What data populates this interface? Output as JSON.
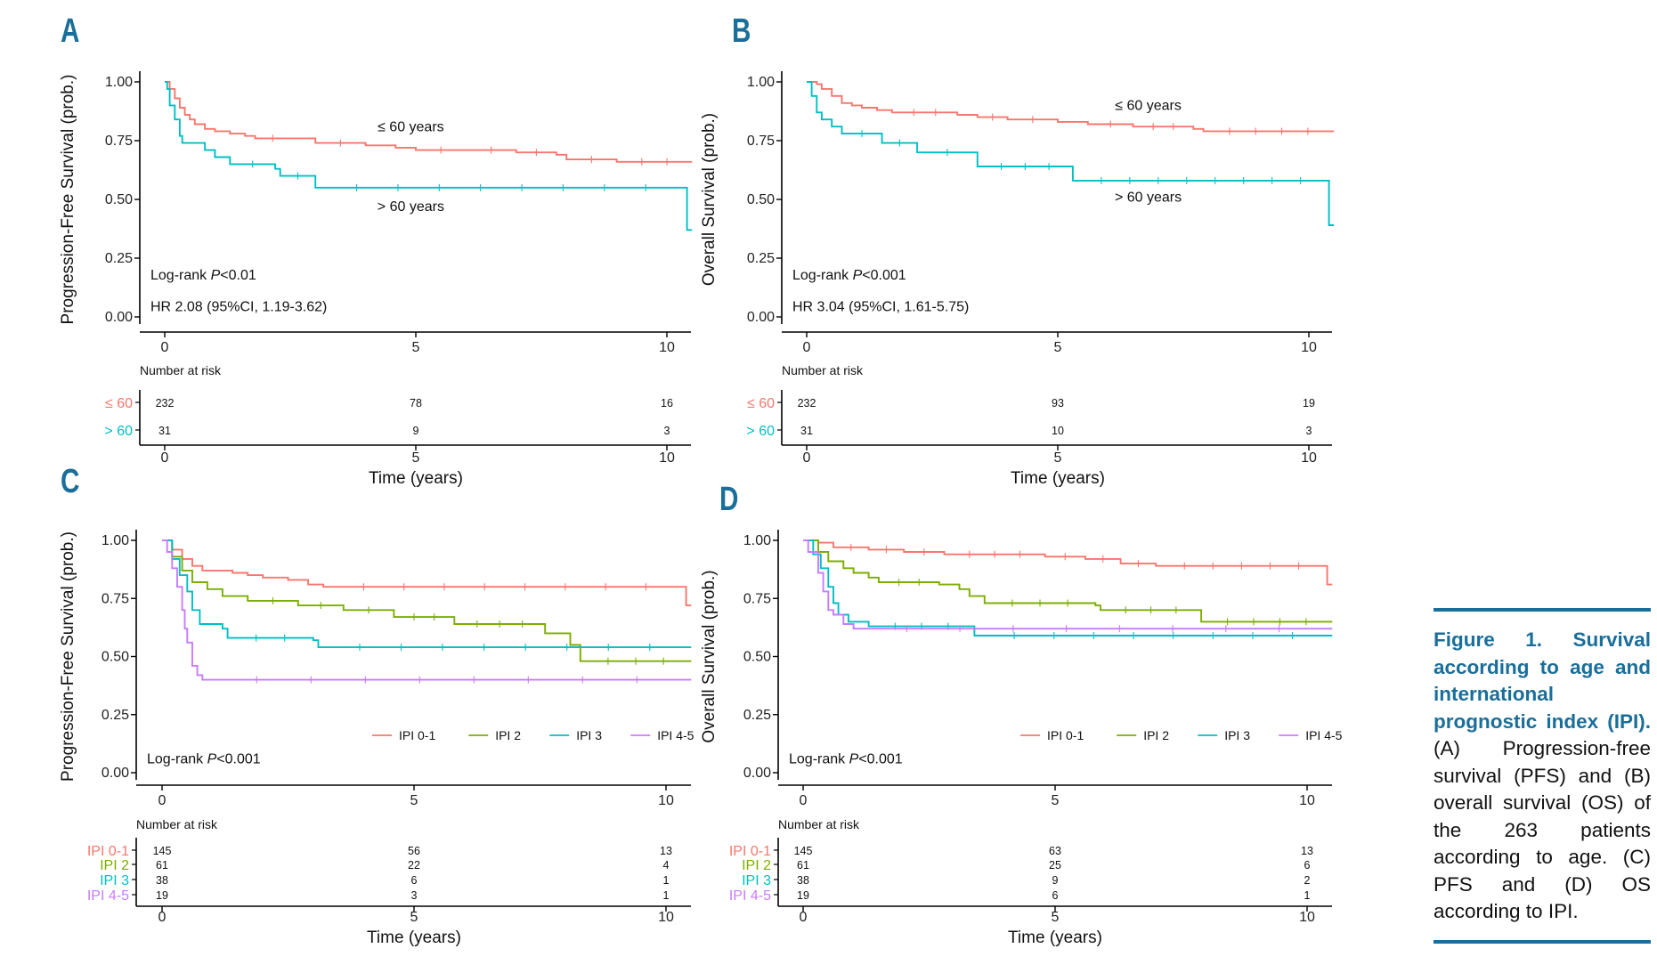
{
  "colors": {
    "red": "#f8766d",
    "teal": "#00bfc4",
    "green": "#7cae00",
    "cyan": "#00b5d6",
    "purple": "#c77cff",
    "accent": "#1a6e9a"
  },
  "caption": {
    "heading": "Figure 1. Survival according to age and international prognostic index (IPI).",
    "body": " (A) Progression-free survival (PFS) and (B) overall survival (OS) of the 263 patients according to age. (C) PFS and (D) OS according to IPI."
  },
  "chart_data": [
    {
      "panel": "A",
      "type": "line",
      "subtype": "kaplan-meier",
      "ylabel": "Progression-Free Survival (prob.)",
      "xlabel": "Time (years)",
      "xlim": [
        0,
        10.5
      ],
      "ylim": [
        0,
        1
      ],
      "xticks": [
        "0",
        "5",
        "10"
      ],
      "yticks": [
        "0.00",
        "0.25",
        "0.50",
        "0.75",
        "1.00"
      ],
      "annotations": {
        "logrank_prefix": "Log-rank ",
        "logrank_p": "P",
        "logrank_value": "<0.01",
        "hr": "HR 2.08 (95%CI, 1.19-3.62)"
      },
      "series": [
        {
          "name": "≤ 60 years",
          "risk_label": "≤ 60",
          "color": "#f8766d",
          "points": [
            [
              0,
              1
            ],
            [
              0.1,
              0.97
            ],
            [
              0.2,
              0.93
            ],
            [
              0.3,
              0.89
            ],
            [
              0.4,
              0.86
            ],
            [
              0.5,
              0.84
            ],
            [
              0.6,
              0.82
            ],
            [
              0.8,
              0.8
            ],
            [
              1.0,
              0.79
            ],
            [
              1.3,
              0.78
            ],
            [
              1.6,
              0.77
            ],
            [
              1.8,
              0.76
            ],
            [
              2.5,
              0.76
            ],
            [
              3.0,
              0.74
            ],
            [
              4.0,
              0.73
            ],
            [
              4.6,
              0.72
            ],
            [
              5.0,
              0.71
            ],
            [
              6.0,
              0.71
            ],
            [
              7.0,
              0.7
            ],
            [
              7.8,
              0.69
            ],
            [
              8.0,
              0.67
            ],
            [
              9.0,
              0.66
            ],
            [
              10.5,
              0.66
            ]
          ],
          "risk": [
            "232",
            "78",
            "16"
          ],
          "end_label": "≤ 60 years",
          "end_label_xy": [
            4.9,
            0.79
          ]
        },
        {
          "name": "> 60 years",
          "risk_label": "> 60",
          "color": "#00bfc4",
          "points": [
            [
              0,
              1
            ],
            [
              0.05,
              0.97
            ],
            [
              0.1,
              0.9
            ],
            [
              0.2,
              0.84
            ],
            [
              0.3,
              0.77
            ],
            [
              0.35,
              0.74
            ],
            [
              0.7,
              0.74
            ],
            [
              0.8,
              0.71
            ],
            [
              1.0,
              0.68
            ],
            [
              1.3,
              0.65
            ],
            [
              2.2,
              0.63
            ],
            [
              2.3,
              0.6
            ],
            [
              3.0,
              0.55
            ],
            [
              10.4,
              0.55
            ],
            [
              10.4,
              0.37
            ],
            [
              10.5,
              0.37
            ]
          ],
          "risk": [
            "31",
            "9",
            "3"
          ],
          "end_label": "> 60 years",
          "end_label_xy": [
            4.9,
            0.45
          ]
        }
      ],
      "risk_times": [
        0,
        5,
        10
      ],
      "risk_title": "Number at risk"
    },
    {
      "panel": "B",
      "type": "line",
      "subtype": "kaplan-meier",
      "ylabel": "Overall Survival (prob.)",
      "xlabel": "Time (years)",
      "xlim": [
        0,
        10.5
      ],
      "ylim": [
        0,
        1
      ],
      "xticks": [
        "0",
        "5",
        "10"
      ],
      "yticks": [
        "0.00",
        "0.25",
        "0.50",
        "0.75",
        "1.00"
      ],
      "annotations": {
        "logrank_prefix": "Log-rank ",
        "logrank_p": "P",
        "logrank_value": "<0.001",
        "hr": "HR 3.04 (95%CI, 1.61-5.75)"
      },
      "series": [
        {
          "name": "≤ 60 years",
          "risk_label": "≤ 60",
          "color": "#f8766d",
          "points": [
            [
              0,
              1
            ],
            [
              0.2,
              0.99
            ],
            [
              0.3,
              0.97
            ],
            [
              0.5,
              0.94
            ],
            [
              0.7,
              0.91
            ],
            [
              0.9,
              0.9
            ],
            [
              1.1,
              0.89
            ],
            [
              1.4,
              0.88
            ],
            [
              1.7,
              0.87
            ],
            [
              3.0,
              0.86
            ],
            [
              3.4,
              0.85
            ],
            [
              4.0,
              0.84
            ],
            [
              5.0,
              0.83
            ],
            [
              5.6,
              0.82
            ],
            [
              6.5,
              0.81
            ],
            [
              7.7,
              0.8
            ],
            [
              7.9,
              0.79
            ],
            [
              10.5,
              0.79
            ]
          ],
          "risk": [
            "232",
            "93",
            "19"
          ],
          "end_label": "≤ 60 years",
          "end_label_xy": [
            6.8,
            0.88
          ]
        },
        {
          "name": "> 60 years",
          "risk_label": "> 60",
          "color": "#00bfc4",
          "points": [
            [
              0,
              1
            ],
            [
              0.1,
              0.94
            ],
            [
              0.2,
              0.87
            ],
            [
              0.3,
              0.84
            ],
            [
              0.5,
              0.81
            ],
            [
              0.7,
              0.78
            ],
            [
              1.5,
              0.78
            ],
            [
              1.5,
              0.74
            ],
            [
              2.2,
              0.74
            ],
            [
              2.2,
              0.7
            ],
            [
              3.4,
              0.7
            ],
            [
              3.4,
              0.64
            ],
            [
              5.3,
              0.64
            ],
            [
              5.3,
              0.58
            ],
            [
              10.4,
              0.58
            ],
            [
              10.4,
              0.39
            ],
            [
              10.5,
              0.39
            ]
          ],
          "risk": [
            "31",
            "10",
            "3"
          ],
          "end_label": "> 60 years",
          "end_label_xy": [
            6.8,
            0.49
          ]
        }
      ],
      "risk_times": [
        0,
        5,
        10
      ],
      "risk_title": "Number at risk"
    },
    {
      "panel": "C",
      "type": "line",
      "subtype": "kaplan-meier",
      "ylabel": "Progression-Free Survival (prob.)",
      "xlabel": "Time (years)",
      "xlim": [
        0,
        10.5
      ],
      "ylim": [
        0,
        1
      ],
      "xticks": [
        "0",
        "5",
        "10"
      ],
      "yticks": [
        "0.00",
        "0.25",
        "0.50",
        "0.75",
        "1.00"
      ],
      "annotations": {
        "logrank_prefix": "Log-rank ",
        "logrank_p": "P",
        "logrank_value": "<0.001"
      },
      "legend_position": "bottom-right",
      "series": [
        {
          "name": "IPI 0-1",
          "risk_label": "IPI 0-1",
          "color": "#f8766d",
          "points": [
            [
              0,
              1
            ],
            [
              0.2,
              0.96
            ],
            [
              0.4,
              0.92
            ],
            [
              0.6,
              0.89
            ],
            [
              0.8,
              0.87
            ],
            [
              1.4,
              0.86
            ],
            [
              1.7,
              0.85
            ],
            [
              2.0,
              0.84
            ],
            [
              2.5,
              0.83
            ],
            [
              2.9,
              0.81
            ],
            [
              3.2,
              0.8
            ],
            [
              10.4,
              0.8
            ],
            [
              10.4,
              0.72
            ],
            [
              10.5,
              0.72
            ]
          ],
          "risk": [
            "145",
            "56",
            "13"
          ]
        },
        {
          "name": "IPI 2",
          "risk_label": "IPI 2",
          "color": "#7cae00",
          "points": [
            [
              0,
              1
            ],
            [
              0.2,
              0.93
            ],
            [
              0.4,
              0.87
            ],
            [
              0.6,
              0.82
            ],
            [
              0.9,
              0.79
            ],
            [
              1.2,
              0.76
            ],
            [
              1.7,
              0.74
            ],
            [
              2.7,
              0.72
            ],
            [
              3.6,
              0.7
            ],
            [
              4.6,
              0.67
            ],
            [
              5.8,
              0.64
            ],
            [
              7.6,
              0.6
            ],
            [
              8.1,
              0.55
            ],
            [
              8.3,
              0.48
            ],
            [
              10.5,
              0.48
            ]
          ],
          "risk": [
            "61",
            "22",
            "4"
          ]
        },
        {
          "name": "IPI 3",
          "risk_label": "IPI 3",
          "color": "#00bfc4",
          "points": [
            [
              0,
              1
            ],
            [
              0.2,
              0.92
            ],
            [
              0.35,
              0.85
            ],
            [
              0.5,
              0.78
            ],
            [
              0.6,
              0.7
            ],
            [
              0.75,
              0.64
            ],
            [
              1.2,
              0.62
            ],
            [
              1.3,
              0.58
            ],
            [
              3.0,
              0.57
            ],
            [
              3.1,
              0.54
            ],
            [
              10.5,
              0.54
            ]
          ],
          "risk": [
            "38",
            "6",
            "1"
          ]
        },
        {
          "name": "IPI 4-5",
          "risk_label": "IPI 4-5",
          "color": "#c77cff",
          "points": [
            [
              0,
              1
            ],
            [
              0.1,
              0.95
            ],
            [
              0.2,
              0.88
            ],
            [
              0.3,
              0.8
            ],
            [
              0.4,
              0.7
            ],
            [
              0.45,
              0.62
            ],
            [
              0.5,
              0.56
            ],
            [
              0.6,
              0.46
            ],
            [
              0.7,
              0.42
            ],
            [
              0.8,
              0.4
            ],
            [
              10.5,
              0.4
            ]
          ],
          "risk": [
            "19",
            "3",
            "1"
          ]
        }
      ],
      "risk_times": [
        0,
        5,
        10
      ],
      "risk_title": "Number at risk"
    },
    {
      "panel": "D",
      "type": "line",
      "subtype": "kaplan-meier",
      "ylabel": "Overall Survival (prob.)",
      "xlabel": "Time (years)",
      "xlim": [
        0,
        10.5
      ],
      "ylim": [
        0,
        1
      ],
      "xticks": [
        "0",
        "5",
        "10"
      ],
      "yticks": [
        "0.00",
        "0.25",
        "0.50",
        "0.75",
        "1.00"
      ],
      "annotations": {
        "logrank_prefix": "Log-rank ",
        "logrank_p": "P",
        "logrank_value": "<0.001"
      },
      "legend_position": "bottom-right",
      "series": [
        {
          "name": "IPI 0-1",
          "risk_label": "IPI 0-1",
          "color": "#f8766d",
          "points": [
            [
              0,
              1
            ],
            [
              0.3,
              0.99
            ],
            [
              0.6,
              0.97
            ],
            [
              1.3,
              0.96
            ],
            [
              2.0,
              0.95
            ],
            [
              2.8,
              0.94
            ],
            [
              4.8,
              0.93
            ],
            [
              5.6,
              0.92
            ],
            [
              6.3,
              0.9
            ],
            [
              7.0,
              0.89
            ],
            [
              10.4,
              0.89
            ],
            [
              10.4,
              0.81
            ],
            [
              10.5,
              0.81
            ]
          ],
          "risk": [
            "145",
            "63",
            "13"
          ]
        },
        {
          "name": "IPI 2",
          "risk_label": "IPI 2",
          "color": "#7cae00",
          "points": [
            [
              0,
              1
            ],
            [
              0.3,
              0.95
            ],
            [
              0.5,
              0.91
            ],
            [
              0.8,
              0.88
            ],
            [
              1.0,
              0.86
            ],
            [
              1.3,
              0.84
            ],
            [
              1.5,
              0.82
            ],
            [
              2.7,
              0.81
            ],
            [
              3.1,
              0.79
            ],
            [
              3.3,
              0.76
            ],
            [
              3.6,
              0.73
            ],
            [
              5.8,
              0.72
            ],
            [
              5.9,
              0.7
            ],
            [
              7.9,
              0.69
            ],
            [
              7.9,
              0.65
            ],
            [
              10.5,
              0.65
            ]
          ],
          "risk": [
            "61",
            "25",
            "6"
          ]
        },
        {
          "name": "IPI 3",
          "risk_label": "IPI 3",
          "color": "#00bfc4",
          "points": [
            [
              0,
              1
            ],
            [
              0.2,
              0.94
            ],
            [
              0.35,
              0.88
            ],
            [
              0.5,
              0.8
            ],
            [
              0.6,
              0.73
            ],
            [
              0.7,
              0.68
            ],
            [
              0.9,
              0.65
            ],
            [
              1.3,
              0.63
            ],
            [
              3.4,
              0.62
            ],
            [
              3.4,
              0.59
            ],
            [
              10.5,
              0.59
            ]
          ],
          "risk": [
            "38",
            "9",
            "2"
          ]
        },
        {
          "name": "IPI 4-5",
          "risk_label": "IPI 4-5",
          "color": "#c77cff",
          "points": [
            [
              0,
              1
            ],
            [
              0.1,
              0.95
            ],
            [
              0.3,
              0.86
            ],
            [
              0.4,
              0.78
            ],
            [
              0.5,
              0.7
            ],
            [
              0.6,
              0.68
            ],
            [
              0.8,
              0.64
            ],
            [
              1.0,
              0.62
            ],
            [
              10.5,
              0.62
            ]
          ],
          "risk": [
            "19",
            "6",
            "1"
          ]
        }
      ],
      "risk_times": [
        0,
        5,
        10
      ],
      "risk_title": "Number at risk"
    }
  ]
}
